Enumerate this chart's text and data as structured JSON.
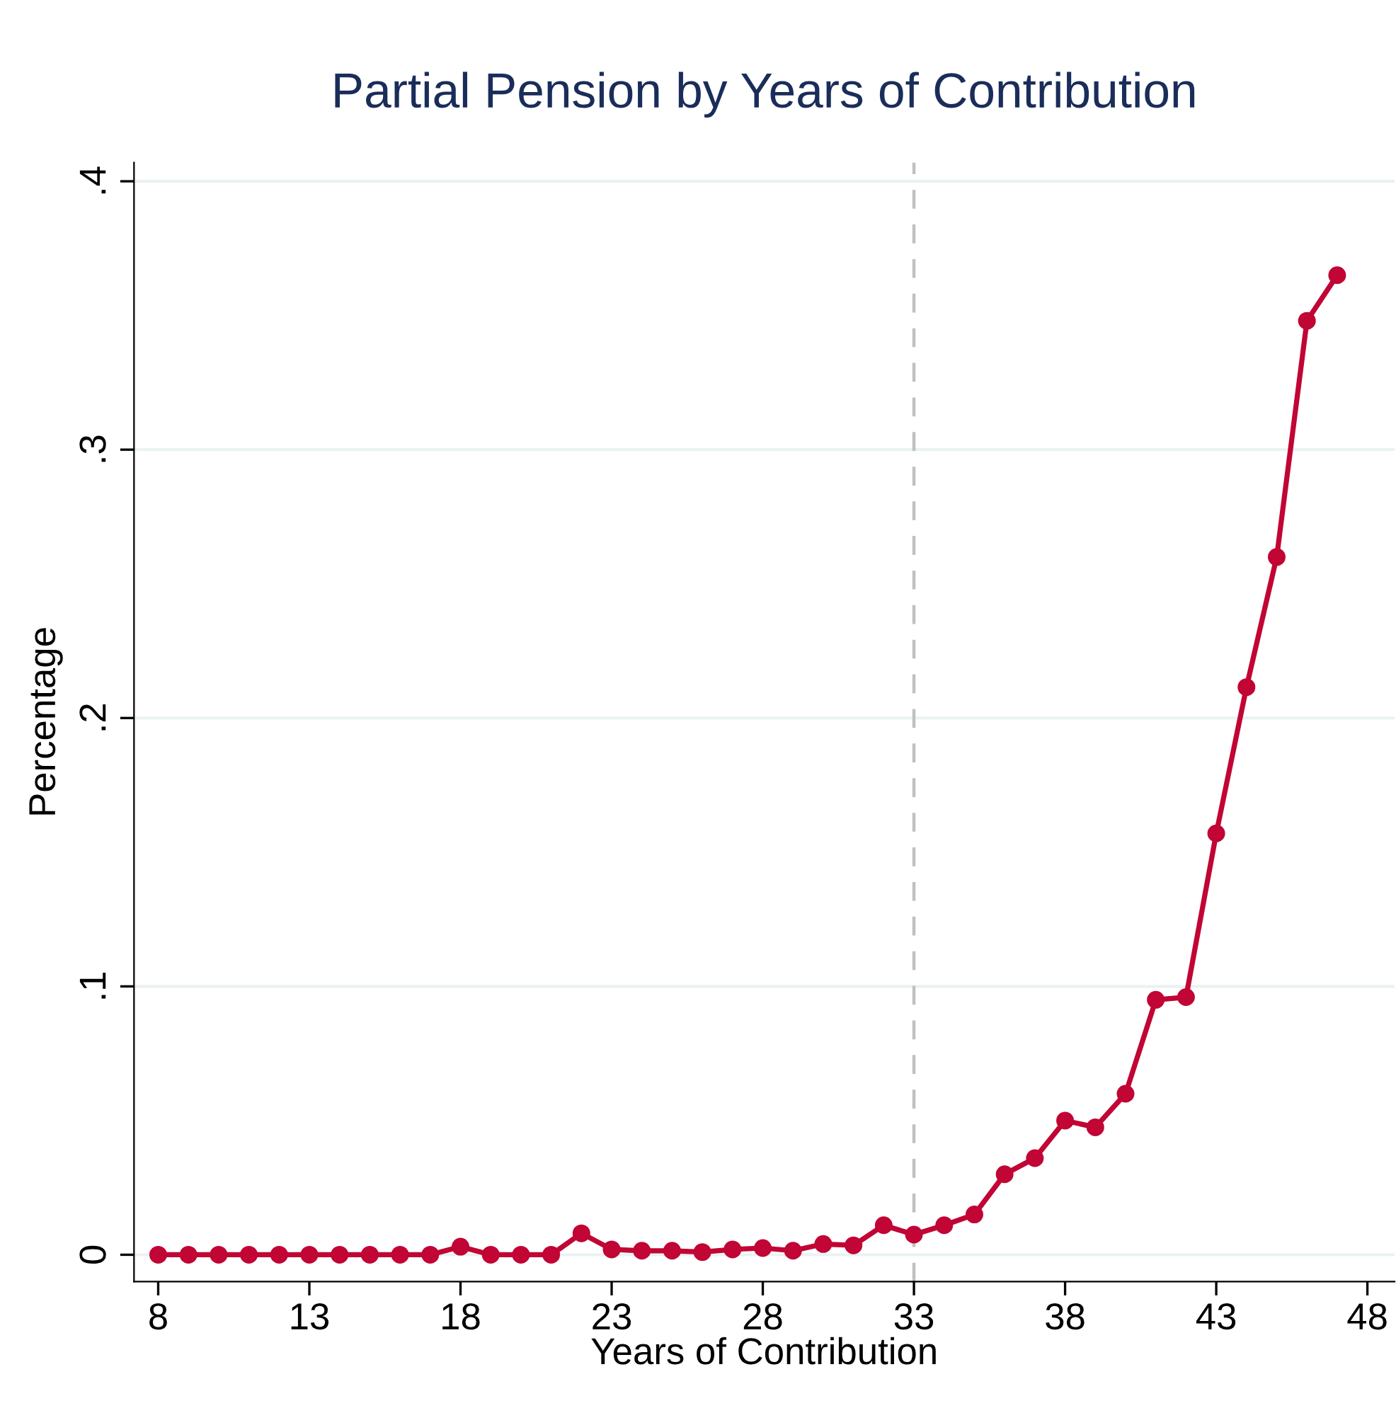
{
  "chart_data": {
    "type": "line",
    "title": "Partial Pension by Years of Contribution",
    "xlabel": "Years of Contribution",
    "ylabel": "Percentage",
    "x": [
      8,
      9,
      10,
      11,
      12,
      13,
      14,
      15,
      16,
      17,
      18,
      19,
      20,
      21,
      22,
      23,
      24,
      25,
      26,
      27,
      28,
      29,
      30,
      31,
      32,
      33,
      34,
      35,
      36,
      37,
      38,
      39,
      40,
      41,
      42,
      43,
      44,
      45,
      46,
      47
    ],
    "series": [
      {
        "color": "#c10534",
        "values": [
          0,
          0,
          0,
          0,
          0,
          0,
          0,
          0,
          0,
          0,
          0.003,
          0,
          0,
          0,
          0.008,
          0.002,
          0.0015,
          0.0015,
          0.001,
          0.002,
          0.0025,
          0.0015,
          0.004,
          0.0035,
          0.011,
          0.0075,
          0.011,
          0.015,
          0.03,
          0.036,
          0.05,
          0.0475,
          0.06,
          0.095,
          0.096,
          0.157,
          0.2115,
          0.26,
          0.348,
          0.365
        ]
      }
    ],
    "xlim": [
      7.2,
      48.9
    ],
    "xticks": [
      8,
      13,
      18,
      23,
      28,
      33,
      38,
      43,
      48
    ],
    "ylim": [
      -0.01,
      0.407
    ],
    "yticks": [
      {
        "value": 0,
        "label": "0"
      },
      {
        "value": 0.1,
        "label": ".1"
      },
      {
        "value": 0.2,
        "label": ".2"
      },
      {
        "value": 0.3,
        "label": ".3"
      },
      {
        "value": 0.4,
        "label": ".4"
      }
    ],
    "grid": "y",
    "marker": "circle",
    "line_style": "solid",
    "ref_lines": [
      {
        "axis": "x",
        "value": 33,
        "color": "#c0c0c0",
        "line_style": "dashed"
      }
    ]
  }
}
